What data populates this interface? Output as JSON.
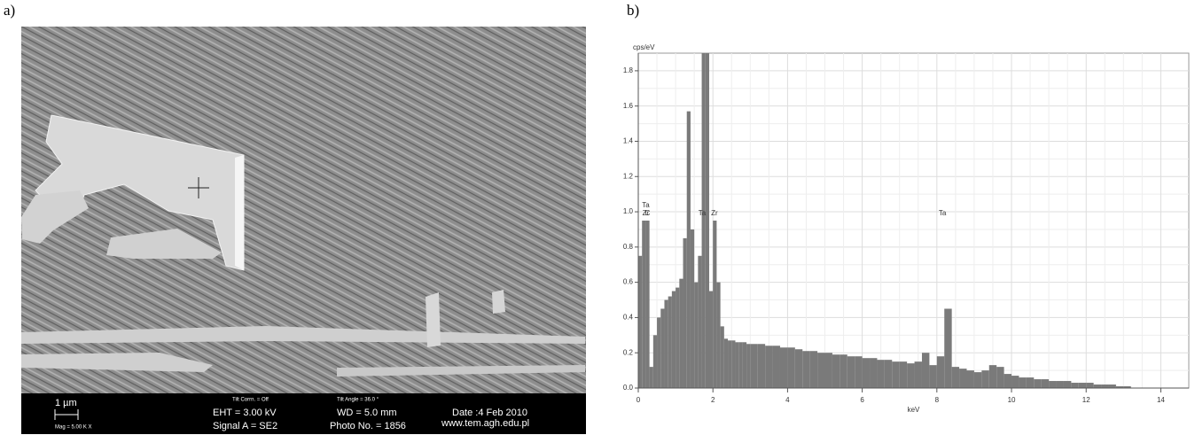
{
  "panel_a": {
    "label": "a)",
    "info_bar": {
      "scale_bar": "1 µm",
      "mag": "Mag =  5.00 K X",
      "tilt_corrn": "Tilt Corrn. = Off",
      "eht": "EHT =  3.00 kV",
      "signal": "Signal A = SE2",
      "tilt_angle": "Tilt Angle =  36.0 °",
      "wd": "WD =  5.0 mm",
      "photo": "Photo No. = 1856",
      "date": "Date :4 Feb 2010",
      "url": "www.tem.agh.edu.pl"
    }
  },
  "panel_b": {
    "label": "b)"
  },
  "chart_data": {
    "type": "bar",
    "y_label": "cps/eV",
    "x_label": "keV",
    "color": "#7a7a7a",
    "grid": true,
    "x": [
      0.0,
      0.1,
      0.2,
      0.3,
      0.4,
      0.5,
      0.6,
      0.7,
      0.8,
      0.9,
      1.0,
      1.1,
      1.2,
      1.3,
      1.4,
      1.5,
      1.6,
      1.7,
      1.8,
      1.9,
      2.0,
      2.1,
      2.2,
      2.3,
      2.4,
      2.5,
      2.6,
      2.7,
      2.8,
      2.9,
      3.0,
      3.2,
      3.4,
      3.6,
      3.8,
      4.0,
      4.2,
      4.4,
      4.6,
      4.8,
      5.0,
      5.2,
      5.4,
      5.6,
      5.8,
      6.0,
      6.2,
      6.4,
      6.6,
      6.8,
      7.0,
      7.2,
      7.4,
      7.6,
      7.8,
      8.0,
      8.2,
      8.4,
      8.6,
      8.8,
      9.0,
      9.2,
      9.4,
      9.6,
      9.8,
      10.0,
      10.2,
      10.4,
      10.6,
      10.8,
      11.0,
      11.2,
      11.4,
      11.6,
      11.8,
      12.0,
      12.2,
      12.4,
      12.6,
      12.8,
      13.0
    ],
    "values": [
      0.75,
      0.95,
      0.95,
      0.12,
      0.3,
      0.4,
      0.45,
      0.5,
      0.52,
      0.55,
      0.57,
      0.62,
      0.85,
      1.57,
      0.9,
      0.6,
      0.75,
      1.9,
      1.9,
      0.55,
      0.95,
      0.6,
      0.35,
      0.28,
      0.27,
      0.27,
      0.26,
      0.26,
      0.26,
      0.25,
      0.25,
      0.25,
      0.24,
      0.24,
      0.23,
      0.23,
      0.22,
      0.21,
      0.21,
      0.2,
      0.2,
      0.19,
      0.19,
      0.18,
      0.18,
      0.17,
      0.17,
      0.16,
      0.16,
      0.15,
      0.15,
      0.14,
      0.15,
      0.2,
      0.13,
      0.18,
      0.45,
      0.12,
      0.11,
      0.1,
      0.09,
      0.1,
      0.13,
      0.12,
      0.08,
      0.07,
      0.06,
      0.06,
      0.05,
      0.05,
      0.04,
      0.04,
      0.04,
      0.03,
      0.03,
      0.03,
      0.02,
      0.02,
      0.02,
      0.01,
      0.01
    ],
    "xlim": [
      0,
      14.75
    ],
    "ylim": [
      0,
      1.9
    ],
    "xticks": [
      0,
      2,
      4,
      6,
      8,
      10,
      12,
      14
    ],
    "yticks": [
      {
        "value": 0,
        "label": "0.0"
      },
      0.2,
      0.4,
      0.6,
      0.8,
      {
        "value": 1,
        "label": "1.0"
      },
      1.2,
      1.4,
      1.6,
      1.8
    ],
    "annotations": [
      {
        "text": "Ta",
        "x": 0.2
      },
      {
        "text": "Zr",
        "x": 0.2
      },
      {
        "text": "C",
        "x": 0.25
      },
      {
        "text": "Ta",
        "x": 1.71
      },
      {
        "text": "Zr",
        "x": 2.04
      },
      {
        "text": "Ta",
        "x": 8.15
      }
    ]
  }
}
